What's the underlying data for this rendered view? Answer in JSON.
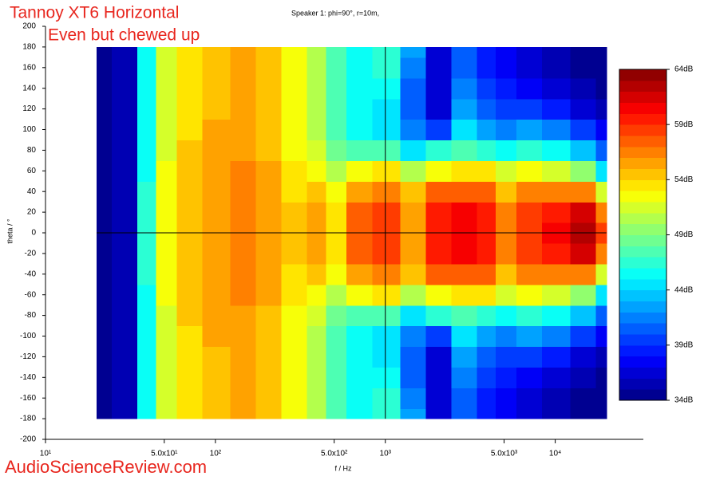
{
  "chart_data": {
    "type": "heatmap",
    "title": "Tannoy XT6 Horizontal",
    "subtitle": "Even but chewed up",
    "annotation": "Speaker 1: phi=90°, r=10m,",
    "watermark": "AudioScienceReview.com",
    "x_label": "f / Hz",
    "y_label": "theta / °",
    "x_scale": "log",
    "xlim": [
      10,
      33000
    ],
    "xticks": [
      {
        "value": 10,
        "label": "10¹"
      },
      {
        "value": 50,
        "label": "5.0x10¹"
      },
      {
        "value": 100,
        "label": "10²"
      },
      {
        "value": 500,
        "label": "5.0x10²"
      },
      {
        "value": 1000,
        "label": "10³"
      },
      {
        "value": 5000,
        "label": "5.0x10³"
      },
      {
        "value": 10000,
        "label": "10⁴"
      }
    ],
    "ylim": [
      -200,
      200
    ],
    "yticks": [
      -200,
      -180,
      -160,
      -140,
      -120,
      -100,
      -80,
      -60,
      -40,
      -20,
      0,
      20,
      40,
      60,
      80,
      100,
      120,
      140,
      160,
      180,
      200
    ],
    "zlim": [
      34,
      64
    ],
    "zticks": [
      {
        "value": 34,
        "label": "34dB"
      },
      {
        "value": 39,
        "label": "39dB"
      },
      {
        "value": 44,
        "label": "44dB"
      },
      {
        "value": 49,
        "label": "49dB"
      },
      {
        "value": 54,
        "label": "54dB"
      },
      {
        "value": 59,
        "label": "59dB"
      },
      {
        "value": 64,
        "label": "64dB"
      }
    ],
    "colormap": "jet",
    "crosshair": [
      1000,
      0
    ],
    "x": [
      20,
      30,
      40,
      50,
      70,
      100,
      150,
      200,
      300,
      400,
      500,
      700,
      1000,
      1500,
      2000,
      3000,
      4000,
      5000,
      7000,
      10000,
      15000,
      20000
    ],
    "y": [
      -180,
      -160,
      -140,
      -120,
      -100,
      -80,
      -60,
      -40,
      -20,
      0,
      20,
      40,
      60,
      80,
      100,
      120,
      140,
      160,
      180
    ],
    "values": [
      [
        34,
        35,
        45,
        51,
        53,
        54,
        55,
        54,
        52,
        50,
        47,
        45,
        46,
        42,
        36,
        40,
        38,
        37,
        36,
        35,
        34,
        34
      ],
      [
        34,
        35,
        45,
        51,
        53,
        54,
        55,
        54,
        52,
        50,
        47,
        45,
        46,
        41,
        36,
        40,
        38,
        37,
        36,
        35,
        34,
        34
      ],
      [
        34,
        35,
        45,
        51,
        53,
        54,
        55,
        54,
        52,
        50,
        47,
        45,
        45,
        40,
        36,
        41,
        39,
        38,
        37,
        36,
        35,
        34
      ],
      [
        34,
        35,
        45,
        51,
        53,
        54,
        55,
        54,
        52,
        50,
        47,
        45,
        44,
        40,
        36,
        42,
        40,
        39,
        39,
        38,
        36,
        35
      ],
      [
        34,
        35,
        45,
        51,
        53,
        55,
        55,
        54,
        52,
        50,
        47,
        45,
        44,
        41,
        39,
        44,
        42,
        41,
        42,
        41,
        39,
        37
      ],
      [
        34,
        35,
        45,
        51,
        54,
        55,
        55,
        54,
        52,
        51,
        48,
        47,
        47,
        44,
        46,
        47,
        46,
        45,
        46,
        45,
        43,
        40
      ],
      [
        34,
        35,
        45,
        52,
        54,
        55,
        56,
        55,
        53,
        52,
        50,
        52,
        53,
        50,
        52,
        53,
        53,
        51,
        52,
        51,
        49,
        44
      ],
      [
        34,
        35,
        46,
        52,
        54,
        55,
        56,
        55,
        53,
        54,
        52,
        55,
        56,
        54,
        57,
        57,
        57,
        54,
        56,
        56,
        56,
        51
      ],
      [
        34,
        35,
        46,
        52,
        54,
        55,
        56,
        55,
        54,
        55,
        53,
        57,
        58,
        55,
        59,
        60,
        59,
        56,
        58,
        59,
        61,
        56
      ],
      [
        34,
        35,
        46,
        52,
        54,
        55,
        56,
        55,
        54,
        55,
        53,
        57,
        58,
        55,
        59,
        60,
        59,
        56,
        58,
        60,
        62,
        58
      ],
      [
        34,
        35,
        46,
        52,
        54,
        55,
        56,
        55,
        54,
        55,
        53,
        57,
        58,
        55,
        59,
        60,
        59,
        56,
        58,
        59,
        61,
        56
      ],
      [
        34,
        35,
        46,
        52,
        54,
        55,
        56,
        55,
        53,
        54,
        52,
        55,
        56,
        54,
        57,
        57,
        57,
        54,
        56,
        56,
        56,
        51
      ],
      [
        34,
        35,
        45,
        52,
        54,
        55,
        56,
        55,
        53,
        52,
        50,
        52,
        53,
        50,
        52,
        53,
        53,
        51,
        52,
        51,
        49,
        44
      ],
      [
        34,
        35,
        45,
        51,
        54,
        55,
        55,
        54,
        52,
        51,
        48,
        47,
        47,
        44,
        46,
        47,
        46,
        45,
        46,
        45,
        43,
        40
      ],
      [
        34,
        35,
        45,
        51,
        53,
        55,
        55,
        54,
        52,
        50,
        47,
        45,
        44,
        41,
        39,
        44,
        42,
        41,
        42,
        41,
        39,
        37
      ],
      [
        34,
        35,
        45,
        51,
        53,
        54,
        55,
        54,
        52,
        50,
        47,
        45,
        44,
        40,
        36,
        42,
        40,
        39,
        39,
        38,
        36,
        35
      ],
      [
        34,
        35,
        45,
        51,
        53,
        54,
        55,
        54,
        52,
        50,
        47,
        45,
        45,
        40,
        36,
        41,
        39,
        38,
        37,
        36,
        35,
        34
      ],
      [
        34,
        35,
        45,
        51,
        53,
        54,
        55,
        54,
        52,
        50,
        47,
        45,
        46,
        41,
        36,
        40,
        38,
        37,
        36,
        35,
        34,
        34
      ],
      [
        34,
        35,
        45,
        51,
        53,
        54,
        55,
        54,
        52,
        50,
        47,
        45,
        46,
        42,
        36,
        40,
        38,
        37,
        36,
        35,
        34,
        34
      ]
    ]
  }
}
